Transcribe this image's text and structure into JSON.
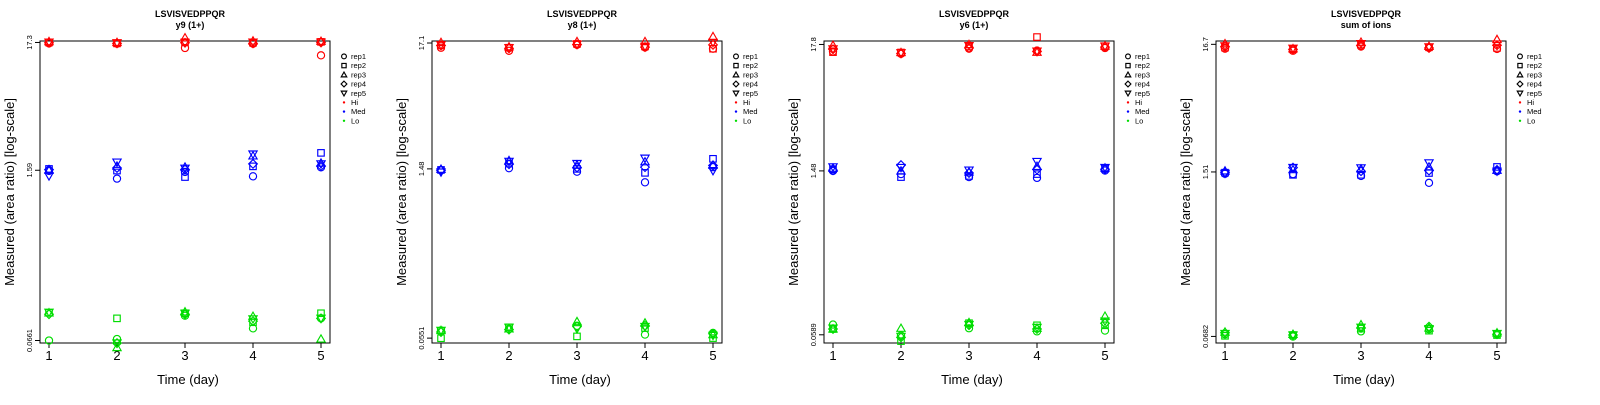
{
  "colors": {
    "Hi": "#ff0000",
    "Med": "#0000ff",
    "Lo": "#00dd00"
  },
  "common": {
    "xlabel": "Time (day)",
    "ylabel": "Measured (area ratio) [log-scale]",
    "x_ticks": [
      "1",
      "2",
      "3",
      "4",
      "5"
    ],
    "legend": [
      {
        "label": "rep1",
        "symbol": "circle"
      },
      {
        "label": "rep2",
        "symbol": "square"
      },
      {
        "label": "rep3",
        "symbol": "triangle-up"
      },
      {
        "label": "rep4",
        "symbol": "diamond"
      },
      {
        "label": "rep5",
        "symbol": "triangle-down"
      },
      {
        "label": "Hi",
        "symbol": "dot",
        "color": "#ff0000"
      },
      {
        "label": "Med",
        "symbol": "dot",
        "color": "#0000ff"
      },
      {
        "label": "Lo",
        "symbol": "dot",
        "color": "#00dd00"
      }
    ]
  },
  "chart_data": [
    {
      "type": "scatter",
      "title": "LSVISVEDPPQR",
      "subtitle": "y9 (1+)",
      "xlabel": "Time (day)",
      "ylabel": "Measured (area ratio) [log-scale]",
      "y_ticks": [
        "17.3",
        "1.59",
        "0.0661"
      ],
      "ylim_log": [
        -1.2,
        1.25
      ],
      "x": [
        1,
        2,
        3,
        4,
        5
      ],
      "series": [
        {
          "group": "Hi",
          "rep": "rep1",
          "values": [
            17.0,
            16.9,
            15.6,
            16.9,
            13.6
          ]
        },
        {
          "group": "Hi",
          "rep": "rep2",
          "values": [
            17.3,
            17.0,
            17.4,
            17.2,
            17.5
          ]
        },
        {
          "group": "Hi",
          "rep": "rep3",
          "values": [
            17.6,
            17.3,
            18.9,
            17.8,
            17.7
          ]
        },
        {
          "group": "Hi",
          "rep": "rep4",
          "values": [
            17.2,
            17.0,
            17.2,
            17.0,
            17.3
          ]
        },
        {
          "group": "Hi",
          "rep": "rep5",
          "values": [
            17.4,
            17.2,
            17.3,
            17.4,
            17.4
          ]
        },
        {
          "group": "Med",
          "rep": "rep1",
          "values": [
            1.57,
            1.36,
            1.54,
            1.42,
            1.68
          ]
        },
        {
          "group": "Med",
          "rep": "rep2",
          "values": [
            1.63,
            1.58,
            1.4,
            1.71,
            2.2
          ]
        },
        {
          "group": "Med",
          "rep": "rep3",
          "values": [
            1.59,
            1.72,
            1.69,
            2.08,
            1.82
          ]
        },
        {
          "group": "Med",
          "rep": "rep4",
          "values": [
            1.61,
            1.66,
            1.61,
            1.79,
            1.72
          ]
        },
        {
          "group": "Med",
          "rep": "rep5",
          "values": [
            1.43,
            1.85,
            1.65,
            2.15,
            1.79
          ]
        },
        {
          "group": "Lo",
          "rep": "rep1",
          "values": [
            0.0661,
            0.068,
            0.105,
            0.083,
            0.1
          ]
        },
        {
          "group": "Lo",
          "rep": "rep2",
          "values": [
            0.111,
            0.1,
            0.11,
            0.093,
            0.11
          ]
        },
        {
          "group": "Lo",
          "rep": "rep3",
          "values": [
            0.111,
            0.058,
            0.113,
            0.104,
            0.068
          ]
        },
        {
          "group": "Lo",
          "rep": "rep4",
          "values": [
            0.108,
            0.063,
            0.108,
            0.095,
            0.1
          ]
        },
        {
          "group": "Lo",
          "rep": "rep5",
          "values": [
            0.112,
            0.063,
            0.11,
            0.099,
            0.1
          ]
        }
      ]
    },
    {
      "type": "scatter",
      "title": "LSVISVEDPPQR",
      "subtitle": "y8 (1+)",
      "xlabel": "Time (day)",
      "ylabel": "Measured (area ratio) [log-scale]",
      "y_ticks": [
        "17.1",
        "1.48",
        "0.0551"
      ],
      "ylim_log": [
        -1.3,
        1.25
      ],
      "x": [
        1,
        2,
        3,
        4,
        5
      ],
      "series": [
        {
          "group": "Hi",
          "rep": "rep1",
          "values": [
            15.6,
            14.7,
            16.5,
            15.7,
            15.3
          ]
        },
        {
          "group": "Hi",
          "rep": "rep2",
          "values": [
            16.3,
            15.6,
            16.8,
            16.0,
            15.3
          ]
        },
        {
          "group": "Hi",
          "rep": "rep3",
          "values": [
            17.3,
            15.9,
            17.6,
            17.6,
            19.4
          ]
        },
        {
          "group": "Hi",
          "rep": "rep4",
          "values": [
            16.3,
            15.4,
            16.6,
            15.8,
            16.5
          ]
        },
        {
          "group": "Hi",
          "rep": "rep5",
          "values": [
            16.5,
            15.6,
            16.7,
            16.0,
            17.3
          ]
        },
        {
          "group": "Med",
          "rep": "rep1",
          "values": [
            1.44,
            1.5,
            1.4,
            1.14,
            1.53
          ]
        },
        {
          "group": "Med",
          "rep": "rep2",
          "values": [
            1.45,
            1.64,
            1.48,
            1.37,
            1.8
          ]
        },
        {
          "group": "Med",
          "rep": "rep3",
          "values": [
            1.47,
            1.74,
            1.6,
            1.7,
            1.59
          ]
        },
        {
          "group": "Med",
          "rep": "rep4",
          "values": [
            1.44,
            1.62,
            1.52,
            1.53,
            1.58
          ]
        },
        {
          "group": "Med",
          "rep": "rep5",
          "values": [
            1.39,
            1.71,
            1.64,
            1.82,
            1.43
          ]
        },
        {
          "group": "Lo",
          "rep": "rep1",
          "values": [
            0.064,
            0.066,
            0.07,
            0.059,
            0.061
          ]
        },
        {
          "group": "Lo",
          "rep": "rep2",
          "values": [
            0.055,
            0.068,
            0.057,
            0.067,
            0.0551
          ]
        },
        {
          "group": "Lo",
          "rep": "rep3",
          "values": [
            0.064,
            0.066,
            0.076,
            0.074,
            0.059
          ]
        },
        {
          "group": "Lo",
          "rep": "rep4",
          "values": [
            0.062,
            0.065,
            0.069,
            0.07,
            0.06
          ]
        },
        {
          "group": "Lo",
          "rep": "rep5",
          "values": [
            0.064,
            0.068,
            0.066,
            0.069,
            0.058
          ]
        }
      ]
    },
    {
      "type": "scatter",
      "title": "LSVISVEDPPQR",
      "subtitle": "y6 (1+)",
      "xlabel": "Time (day)",
      "ylabel": "Measured (area ratio) [log-scale]",
      "y_ticks": [
        "17.8",
        "1.48",
        "0.0589"
      ],
      "ylim_log": [
        -1.3,
        1.28
      ],
      "x": [
        1,
        2,
        3,
        4,
        5
      ],
      "series": [
        {
          "group": "Hi",
          "rep": "rep1",
          "values": [
            15.5,
            14.8,
            16.4,
            15.8,
            16.6
          ]
        },
        {
          "group": "Hi",
          "rep": "rep2",
          "values": [
            15.3,
            15.2,
            17.1,
            20.6,
            17.2
          ]
        },
        {
          "group": "Hi",
          "rep": "rep3",
          "values": [
            17.5,
            15.2,
            17.8,
            15.3,
            17.3
          ]
        },
        {
          "group": "Hi",
          "rep": "rep4",
          "values": [
            16.2,
            14.9,
            16.6,
            15.5,
            16.9
          ]
        },
        {
          "group": "Hi",
          "rep": "rep5",
          "values": [
            16.3,
            15.1,
            17.4,
            15.6,
            17.2
          ]
        },
        {
          "group": "Med",
          "rep": "rep1",
          "values": [
            1.48,
            1.39,
            1.31,
            1.29,
            1.49
          ]
        },
        {
          "group": "Med",
          "rep": "rep2",
          "values": [
            1.53,
            1.31,
            1.34,
            1.39,
            1.54
          ]
        },
        {
          "group": "Med",
          "rep": "rep3",
          "values": [
            1.56,
            1.48,
            1.45,
            1.62,
            1.57
          ]
        },
        {
          "group": "Med",
          "rep": "rep4",
          "values": [
            1.5,
            1.66,
            1.42,
            1.52,
            1.53
          ]
        },
        {
          "group": "Med",
          "rep": "rep5",
          "values": [
            1.6,
            1.58,
            1.5,
            1.78,
            1.58
          ]
        },
        {
          "group": "Lo",
          "rep": "rep1",
          "values": [
            0.072,
            0.058,
            0.067,
            0.063,
            0.064
          ]
        },
        {
          "group": "Lo",
          "rep": "rep2",
          "values": [
            0.066,
            0.052,
            0.074,
            0.071,
            0.071
          ]
        },
        {
          "group": "Lo",
          "rep": "rep3",
          "values": [
            0.066,
            0.067,
            0.075,
            0.067,
            0.085
          ]
        },
        {
          "group": "Lo",
          "rep": "rep4",
          "values": [
            0.066,
            0.056,
            0.071,
            0.066,
            0.074
          ]
        },
        {
          "group": "Lo",
          "rep": "rep5",
          "values": [
            0.067,
            0.057,
            0.072,
            0.068,
            0.077
          ]
        }
      ]
    },
    {
      "type": "scatter",
      "title": "LSVISVEDPPQR",
      "subtitle": "sum of ions",
      "xlabel": "Time (day)",
      "ylabel": "Measured (area ratio) [log-scale]",
      "y_ticks": [
        "16.7",
        "1.51",
        "0.0682"
      ],
      "ylim_log": [
        -1.22,
        1.25
      ],
      "x": [
        1,
        2,
        3,
        4,
        5
      ],
      "series": [
        {
          "group": "Hi",
          "rep": "rep1",
          "values": [
            15.4,
            14.8,
            16.0,
            15.6,
            15.3
          ]
        },
        {
          "group": "Hi",
          "rep": "rep2",
          "values": [
            15.7,
            15.2,
            16.6,
            15.8,
            15.6
          ]
        },
        {
          "group": "Hi",
          "rep": "rep3",
          "values": [
            16.9,
            15.4,
            17.4,
            16.1,
            18.3
          ]
        },
        {
          "group": "Hi",
          "rep": "rep4",
          "values": [
            16.0,
            15.2,
            16.3,
            15.6,
            16.4
          ]
        },
        {
          "group": "Hi",
          "rep": "rep5",
          "values": [
            16.2,
            15.5,
            16.9,
            15.9,
            16.8
          ]
        },
        {
          "group": "Med",
          "rep": "rep1",
          "values": [
            1.46,
            1.45,
            1.4,
            1.23,
            1.53
          ]
        },
        {
          "group": "Med",
          "rep": "rep2",
          "values": [
            1.49,
            1.43,
            1.43,
            1.48,
            1.66
          ]
        },
        {
          "group": "Med",
          "rep": "rep3",
          "values": [
            1.54,
            1.58,
            1.6,
            1.66,
            1.56
          ]
        },
        {
          "group": "Med",
          "rep": "rep4",
          "values": [
            1.5,
            1.64,
            1.53,
            1.55,
            1.57
          ]
        },
        {
          "group": "Med",
          "rep": "rep5",
          "values": [
            1.47,
            1.64,
            1.63,
            1.79,
            1.53
          ]
        },
        {
          "group": "Lo",
          "rep": "rep1",
          "values": [
            0.071,
            0.068,
            0.075,
            0.078,
            0.071
          ]
        },
        {
          "group": "Lo",
          "rep": "rep2",
          "values": [
            0.069,
            0.07,
            0.079,
            0.076,
            0.07
          ]
        },
        {
          "group": "Lo",
          "rep": "rep3",
          "values": [
            0.074,
            0.071,
            0.085,
            0.08,
            0.073
          ]
        },
        {
          "group": "Lo",
          "rep": "rep4",
          "values": [
            0.073,
            0.07,
            0.08,
            0.082,
            0.071
          ]
        },
        {
          "group": "Lo",
          "rep": "rep5",
          "values": [
            0.072,
            0.07,
            0.081,
            0.079,
            0.072
          ]
        }
      ]
    }
  ]
}
